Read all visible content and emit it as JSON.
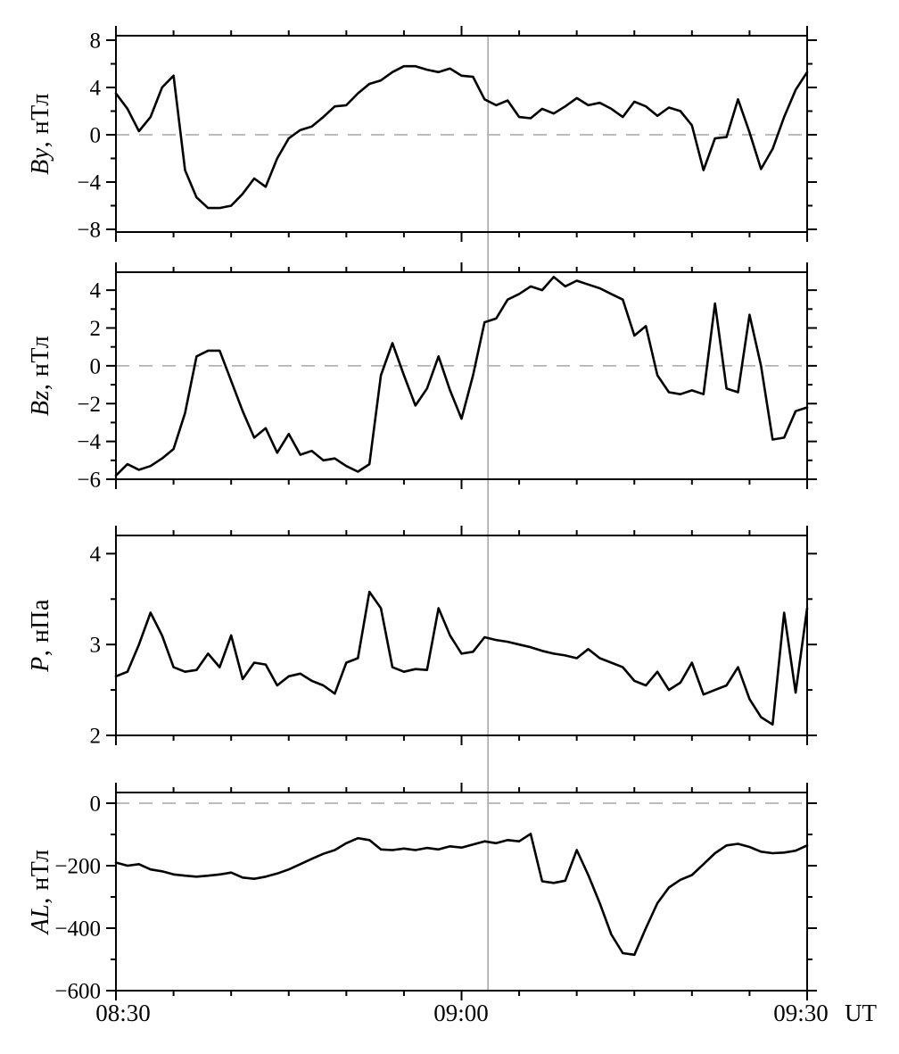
{
  "figure": {
    "background": "#ffffff",
    "axis_color": "#000000",
    "curve_color": "#000000",
    "dash_line_color": "#b3b3b3",
    "marker_line_color": "#a8a8a8"
  },
  "x_axis": {
    "start_label": "08:30",
    "mid_label": "09:00",
    "end_label": "09:30",
    "unit_label": "UT",
    "major_tick_minutes": [
      0,
      30,
      60
    ],
    "minor_tick_step_minutes": 5,
    "total_minutes": 60
  },
  "event_marker": {
    "minute": 32.3,
    "time": "09:02"
  },
  "chart_data": [
    {
      "type": "line",
      "name": "By",
      "ylabel_var": "By",
      "ylabel_unit": ", нТл",
      "ylim": [
        -8.23,
        8.38
      ],
      "ytick_values": [
        -8,
        -4,
        0,
        4,
        8
      ],
      "ytick_labels": [
        "−8",
        "−4",
        "0",
        "4",
        "8"
      ],
      "yminor_values": [
        -6,
        -2,
        2,
        6
      ],
      "zero_dash_line": 0,
      "x_start_minute": 0,
      "x_step_minutes": 1,
      "values": [
        3.5,
        2.2,
        0.3,
        1.5,
        4.0,
        5.0,
        -3.0,
        -5.3,
        -6.2,
        -6.2,
        -6.0,
        -5.0,
        -3.7,
        -4.4,
        -2.0,
        -0.3,
        0.4,
        0.7,
        1.5,
        2.4,
        2.5,
        3.5,
        4.3,
        4.6,
        5.3,
        5.8,
        5.8,
        5.5,
        5.3,
        5.6,
        5.0,
        4.9,
        3.0,
        2.5,
        2.9,
        1.5,
        1.4,
        2.2,
        1.8,
        2.4,
        3.1,
        2.5,
        2.7,
        2.2,
        1.5,
        2.8,
        2.4,
        1.6,
        2.3,
        2.0,
        0.8,
        -3.0,
        -0.3,
        -0.2,
        3.0,
        0.2,
        -2.9,
        -1.2,
        1.5,
        3.8,
        5.3
      ]
    },
    {
      "type": "line",
      "name": "Bz",
      "ylabel_var": "Bz",
      "ylabel_unit": ", нТл",
      "ylim": [
        -6.0,
        4.95
      ],
      "ytick_values": [
        -6,
        -4,
        -2,
        0,
        2,
        4
      ],
      "ytick_labels": [
        "−6",
        "−4",
        "−2",
        "0",
        "2",
        "4"
      ],
      "yminor_values": [
        -5,
        -3,
        -1,
        1,
        3
      ],
      "zero_dash_line": 0,
      "x_start_minute": 0,
      "x_step_minutes": 1,
      "values": [
        -5.8,
        -5.2,
        -5.5,
        -5.3,
        -4.9,
        -4.4,
        -2.5,
        0.5,
        0.8,
        0.8,
        -0.8,
        -2.4,
        -3.8,
        -3.3,
        -4.6,
        -3.6,
        -4.7,
        -4.5,
        -5.0,
        -4.9,
        -5.3,
        -5.6,
        -5.2,
        -0.5,
        1.2,
        -0.5,
        -2.1,
        -1.2,
        0.5,
        -1.3,
        -2.8,
        -0.5,
        2.3,
        2.5,
        3.5,
        3.8,
        4.2,
        4.0,
        4.7,
        4.2,
        4.5,
        4.3,
        4.1,
        3.8,
        3.5,
        1.6,
        2.1,
        -0.5,
        -1.4,
        -1.5,
        -1.3,
        -1.5,
        3.3,
        -1.2,
        -1.4,
        2.7,
        0.0,
        -3.9,
        -3.8,
        -2.4,
        -2.2
      ]
    },
    {
      "type": "line",
      "name": "P",
      "ylabel_var": "P",
      "ylabel_unit": ", нПа",
      "ylim": [
        2.0,
        4.2
      ],
      "ytick_values": [
        2,
        3,
        4
      ],
      "ytick_labels": [
        "2",
        "3",
        "4"
      ],
      "yminor_values": [
        2.5,
        3.5
      ],
      "zero_dash_line": null,
      "x_start_minute": 0,
      "x_step_minutes": 1,
      "values": [
        2.65,
        2.7,
        3.0,
        3.35,
        3.1,
        2.75,
        2.7,
        2.72,
        2.9,
        2.75,
        3.1,
        2.62,
        2.8,
        2.78,
        2.55,
        2.65,
        2.68,
        2.6,
        2.55,
        2.46,
        2.8,
        2.85,
        3.58,
        3.4,
        2.75,
        2.7,
        2.73,
        2.72,
        3.4,
        3.1,
        2.9,
        2.92,
        3.08,
        3.05,
        3.03,
        3.0,
        2.97,
        2.93,
        2.9,
        2.88,
        2.85,
        2.95,
        2.85,
        2.8,
        2.75,
        2.6,
        2.55,
        2.7,
        2.5,
        2.58,
        2.8,
        2.45,
        2.5,
        2.55,
        2.75,
        2.4,
        2.2,
        2.12,
        3.35,
        2.47,
        3.4
      ]
    },
    {
      "type": "line",
      "name": "AL",
      "ylabel_var": "AL",
      "ylabel_unit": ", нТл",
      "ylim": [
        -600,
        34.3
      ],
      "ytick_values": [
        0,
        -200,
        -400,
        -600
      ],
      "ytick_labels": [
        "0",
        "−200",
        "−400",
        "−600"
      ],
      "yminor_values": [
        -100,
        -300,
        -500
      ],
      "zero_dash_line": 0,
      "x_start_minute": 0,
      "x_step_minutes": 1,
      "values": [
        -190,
        -200,
        -195,
        -212,
        -218,
        -228,
        -232,
        -235,
        -232,
        -228,
        -222,
        -238,
        -242,
        -235,
        -225,
        -212,
        -195,
        -178,
        -162,
        -150,
        -128,
        -112,
        -118,
        -148,
        -150,
        -145,
        -150,
        -143,
        -148,
        -138,
        -142,
        -132,
        -122,
        -128,
        -118,
        -122,
        -98,
        -250,
        -255,
        -248,
        -150,
        -230,
        -320,
        -420,
        -480,
        -485,
        -400,
        -320,
        -270,
        -245,
        -230,
        -195,
        -160,
        -135,
        -130,
        -140,
        -155,
        -160,
        -158,
        -152,
        -135
      ]
    }
  ]
}
